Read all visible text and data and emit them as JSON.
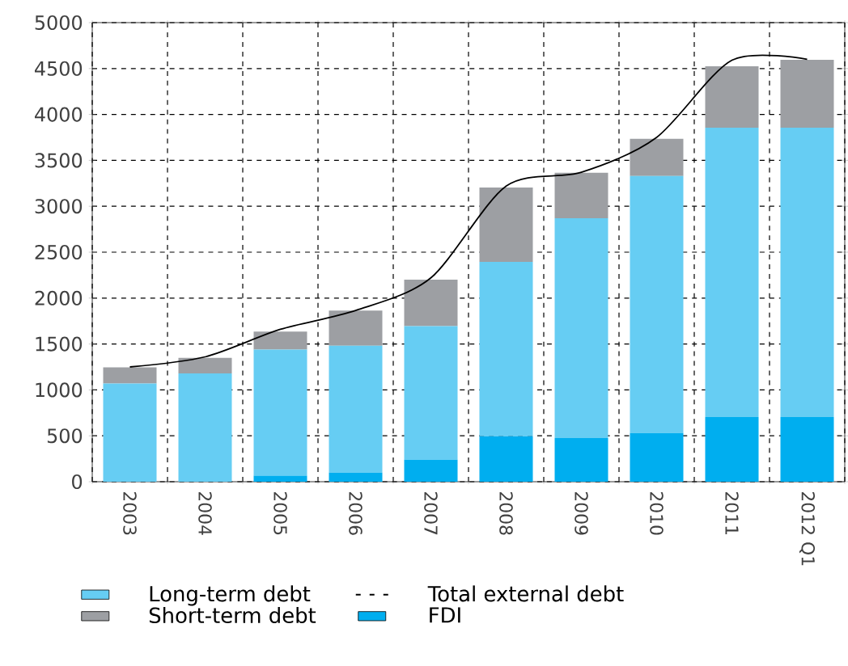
{
  "chart_data": {
    "type": "bar",
    "stacked": true,
    "categories": [
      "2003",
      "2004",
      "2005",
      "2006",
      "2007",
      "2008",
      "2009",
      "2010",
      "2011",
      "2012 Q1"
    ],
    "series": [
      {
        "name": "FDI",
        "color": "#00aeef",
        "values": [
          0,
          0,
          65,
          100,
          240,
          495,
          475,
          530,
          705,
          705
        ]
      },
      {
        "name": "Long-term debt",
        "color": "#66cdf3",
        "values": [
          1070,
          1180,
          1375,
          1380,
          1455,
          1900,
          2395,
          2800,
          3150,
          3150
        ]
      },
      {
        "name": "Short-term debt",
        "color": "#9d9fa3",
        "values": [
          175,
          170,
          195,
          385,
          505,
          810,
          495,
          405,
          670,
          740
        ]
      },
      {
        "name": "Total external debt",
        "type": "line",
        "color": "#000000",
        "values": [
          1250,
          1360,
          1660,
          1865,
          2220,
          3220,
          3370,
          3750,
          4590,
          4600
        ]
      }
    ],
    "ylim": [
      0,
      5000
    ],
    "yticks": [
      0,
      500,
      1000,
      1500,
      2000,
      2500,
      3000,
      3500,
      4000,
      4500,
      5000
    ],
    "grid": true,
    "legend": "bottom",
    "marker": "none",
    "line_style": "solid"
  }
}
